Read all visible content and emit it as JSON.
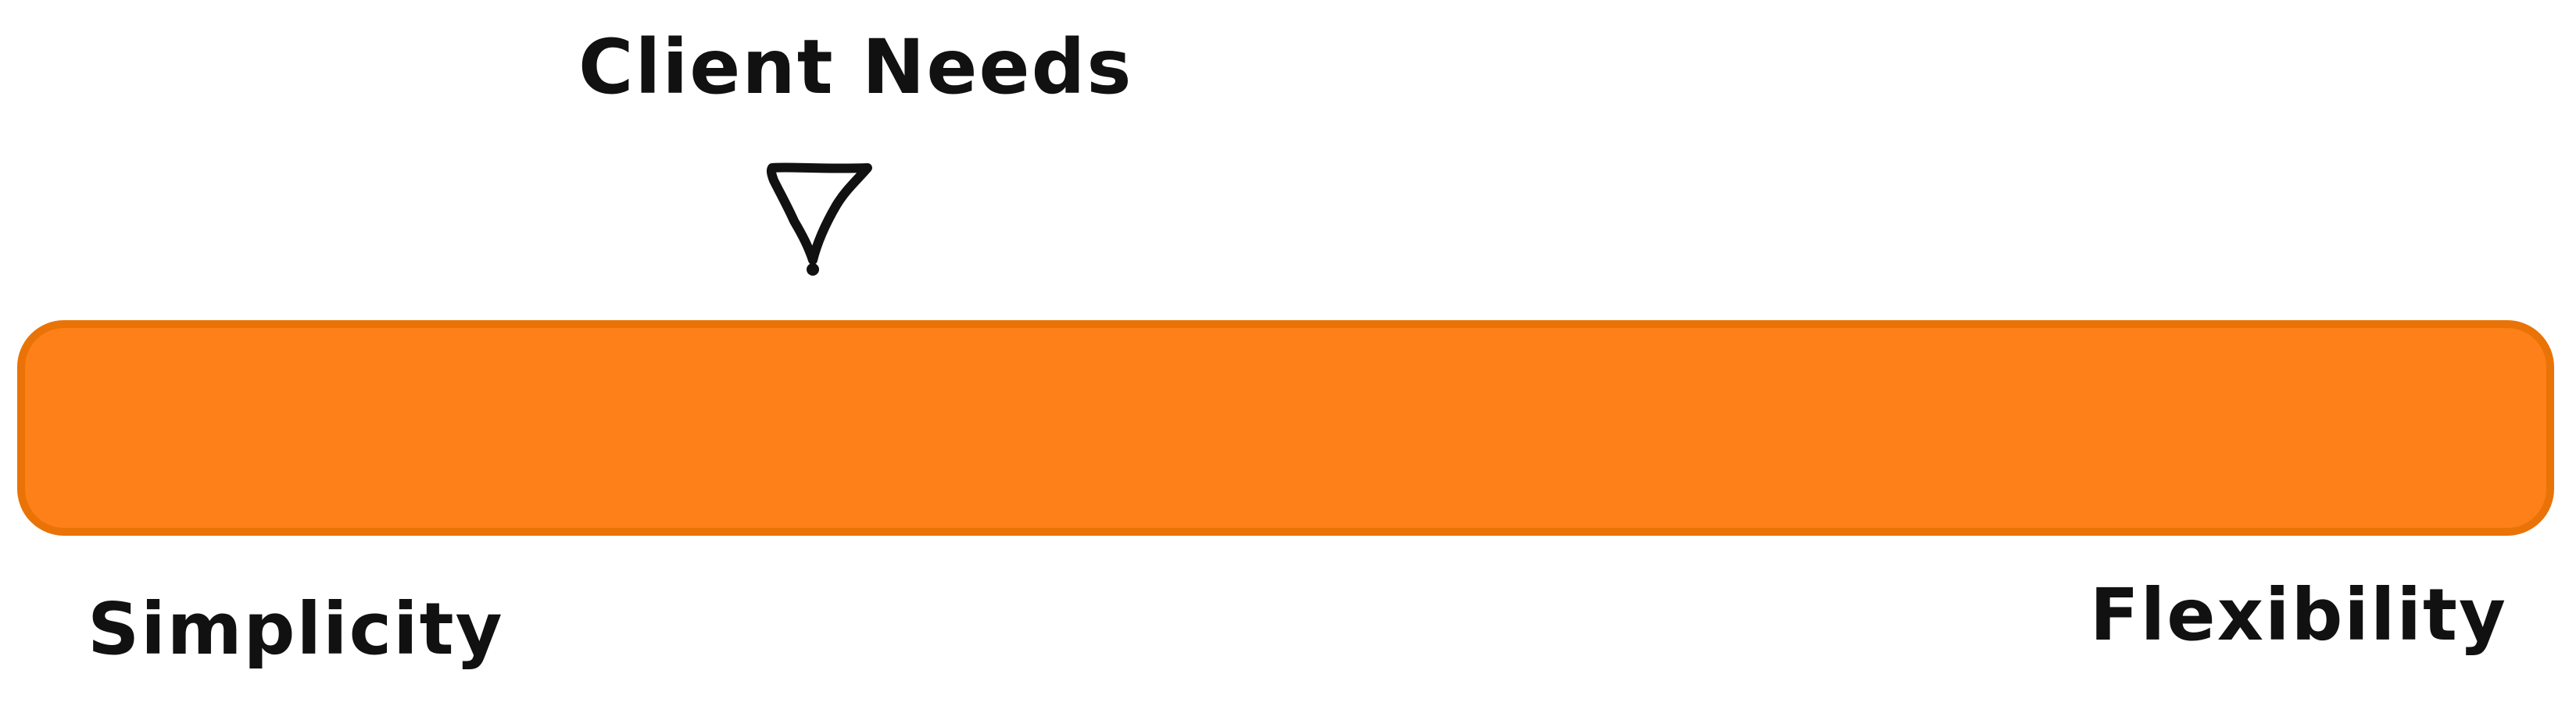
{
  "diagram": {
    "indicator_label": "Client Needs",
    "left_end_label": "Simplicity",
    "right_end_label": "Flexibility",
    "marker_icon": "down-triangle-icon",
    "bar_fill_color": "#FD8018",
    "bar_stroke_color": "#E97307",
    "ink_color": "#111111",
    "indicator_position_fraction": 0.3
  }
}
